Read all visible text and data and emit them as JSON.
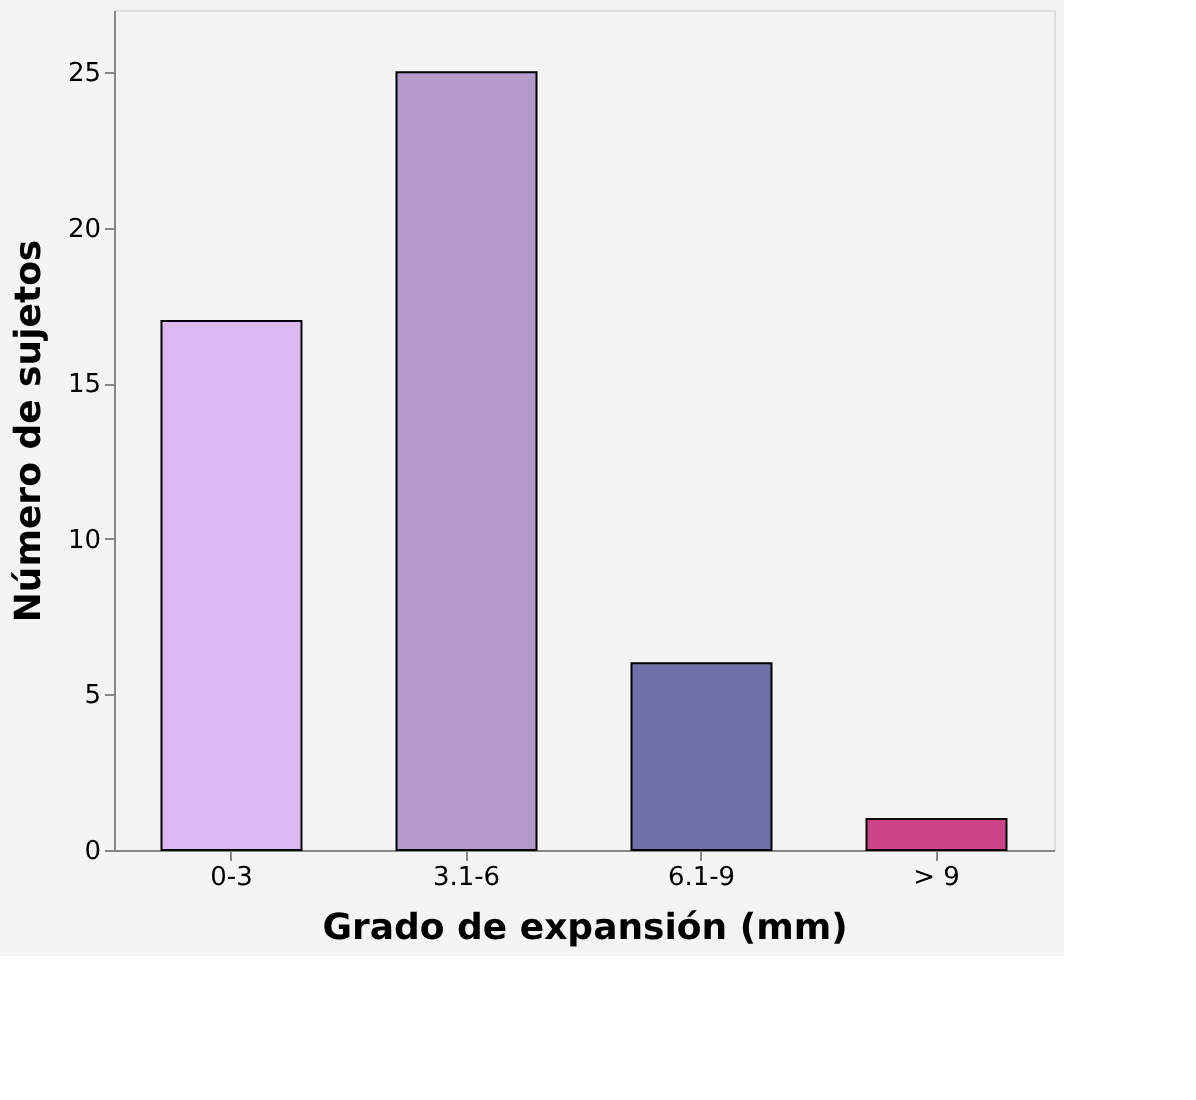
{
  "chart_data": {
    "type": "bar",
    "xlabel": "Grado de expansión (mm)",
    "ylabel": "Número de sujetos",
    "categories": [
      "0-3",
      "3.1-6",
      "6.1-9",
      "> 9"
    ],
    "values": [
      17,
      25,
      6,
      1
    ],
    "colors": [
      "#dcb8f0",
      "#b49ac8",
      "#7070a8",
      "#cc4488"
    ],
    "ylim": [
      0,
      27
    ],
    "yticks": [
      0,
      5,
      10,
      15,
      20,
      25
    ],
    "grid": false
  }
}
